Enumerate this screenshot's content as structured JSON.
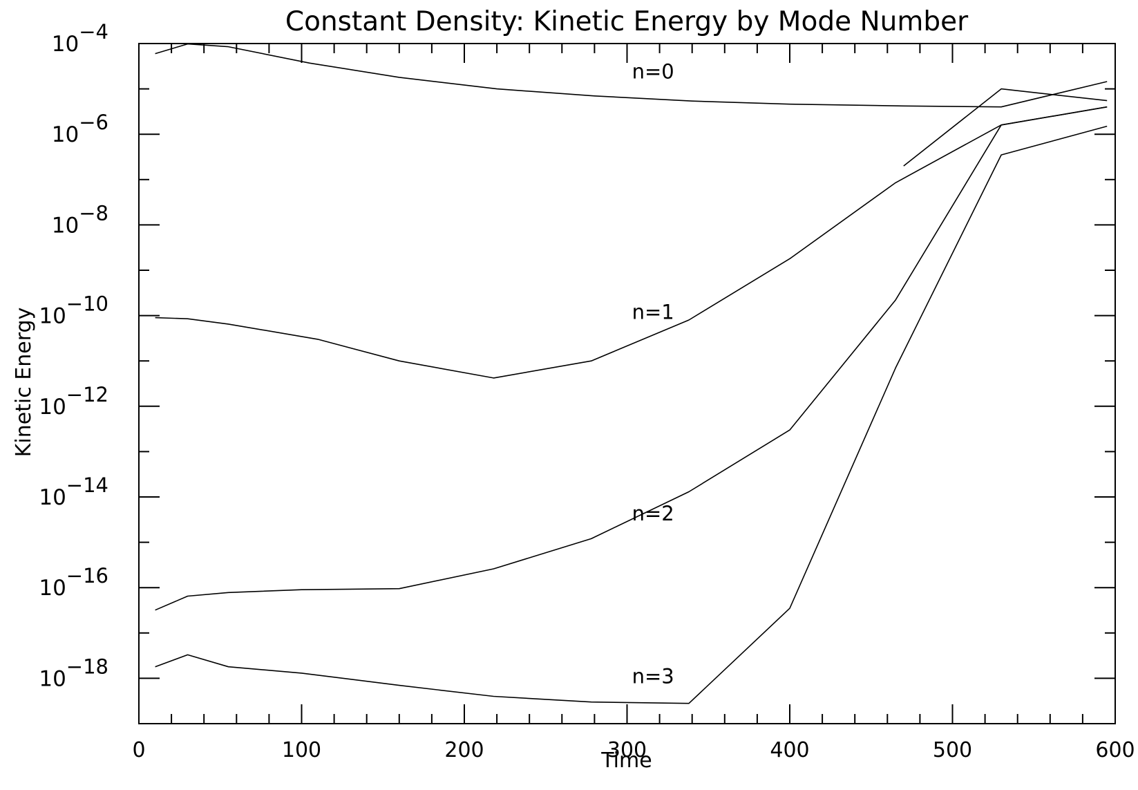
{
  "chart_data": {
    "type": "line",
    "title": "Constant Density: Kinetic Energy by Mode Number",
    "xlabel": "Time",
    "ylabel": "Kinetic Energy",
    "xlim": [
      0,
      600
    ],
    "ylim": [
      1e-19,
      0.0001
    ],
    "yscale": "log",
    "grid": false,
    "x_ticks": [
      "0",
      "100",
      "200",
      "300",
      "400",
      "500",
      "600"
    ],
    "y_ticks": [
      {
        "base": "10",
        "exp": "−4"
      },
      {
        "base": "10",
        "exp": "−6"
      },
      {
        "base": "10",
        "exp": "−8"
      },
      {
        "base": "10",
        "exp": "−10"
      },
      {
        "base": "10",
        "exp": "−12"
      },
      {
        "base": "10",
        "exp": "−14"
      },
      {
        "base": "10",
        "exp": "−16"
      },
      {
        "base": "10",
        "exp": "−18"
      }
    ],
    "series": [
      {
        "name": "n=0",
        "x": [
          10,
          30,
          55,
          105,
          160,
          220,
          280,
          340,
          400,
          470,
          530,
          595
        ],
        "y": [
          6e-05,
          9.8e-05,
          8.5e-05,
          3.7e-05,
          1.8e-05,
          1e-05,
          7e-06,
          5.4e-06,
          4.6e-06,
          4.2e-06,
          4e-06,
          1.45e-05
        ]
      },
      {
        "name": "",
        "x": [
          470,
          530,
          595
        ],
        "y": [
          2e-07,
          1e-05,
          5.5e-06
        ]
      },
      {
        "name": "n=1",
        "x": [
          10,
          30,
          55,
          110,
          160,
          218,
          278,
          338,
          400,
          465,
          530,
          595
        ],
        "y": [
          9e-11,
          8.5e-11,
          6.5e-11,
          3e-11,
          1e-11,
          4.2e-12,
          1e-11,
          8e-11,
          1.8e-09,
          8.5e-08,
          1.6e-06,
          4e-06
        ]
      },
      {
        "name": "n=2",
        "x": [
          10,
          30,
          55,
          100,
          160,
          218,
          278,
          338,
          400,
          465,
          530,
          595
        ],
        "y": [
          3.2e-17,
          6.5e-17,
          7.8e-17,
          9e-17,
          9.5e-17,
          2.6e-16,
          1.2e-15,
          1.3e-14,
          3e-13,
          2.2e-10,
          1.6e-06,
          4e-06
        ]
      },
      {
        "name": "n=3",
        "x": [
          10,
          30,
          55,
          100,
          160,
          218,
          278,
          338,
          400,
          465,
          530,
          595
        ],
        "y": [
          1.8e-18,
          3.3e-18,
          1.8e-18,
          1.3e-18,
          7e-19,
          4e-19,
          3e-19,
          2.8e-19,
          3.5e-17,
          7e-12,
          3.5e-07,
          1.5e-06
        ]
      }
    ],
    "annotations": [
      {
        "text": "n=0",
        "x": 303,
        "y": 2.4e-05
      },
      {
        "text": "n=1",
        "x": 303,
        "y": 1.2e-10
      },
      {
        "text": "n=2",
        "x": 303,
        "y": 4.3e-15
      },
      {
        "text": "n=3",
        "x": 303,
        "y": 1.1e-18
      }
    ]
  }
}
